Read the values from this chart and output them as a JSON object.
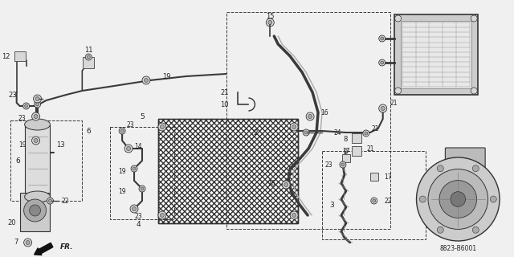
{
  "bg_color": "#f0f0f0",
  "diagram_number": "8823-B6001",
  "line_color": "#3a3a3a",
  "label_color": "#222222",
  "component_fill": "#d8d8d8",
  "component_edge": "#333333"
}
